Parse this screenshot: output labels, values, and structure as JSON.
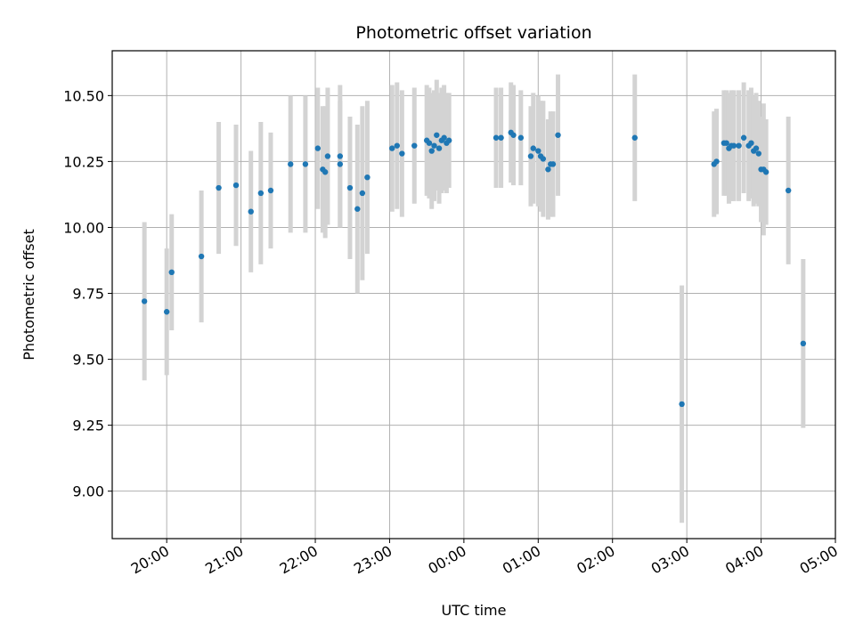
{
  "chart_data": {
    "type": "scatter",
    "title": "Photometric offset variation",
    "xlabel": "UTC time",
    "ylabel": "Photometric offset",
    "grid": true,
    "legend": "none",
    "x_unit": "UTC time (HH:MM)",
    "xlim": [
      "19:16",
      "05:00"
    ],
    "ylim": [
      8.82,
      10.67
    ],
    "x_ticks": [
      "20:00",
      "21:00",
      "22:00",
      "23:00",
      "00:00",
      "01:00",
      "02:00",
      "03:00",
      "04:00",
      "05:00"
    ],
    "y_ticks": [
      "9.00",
      "9.25",
      "9.50",
      "9.75",
      "10.00",
      "10.25",
      "10.50"
    ],
    "colors": {
      "point": "#1f77b4",
      "errorbar": "#d3d3d3",
      "grid": "#b0b0b0"
    },
    "series": [
      {
        "x": [
          "19:42",
          "20:00",
          "20:04",
          "20:28",
          "20:42",
          "20:56",
          "21:08",
          "21:16",
          "21:24",
          "21:40",
          "21:52",
          "22:02",
          "22:06",
          "22:08",
          "22:10",
          "22:20",
          "22:20",
          "22:28",
          "22:34",
          "22:38",
          "22:42",
          "23:02",
          "23:06",
          "23:10",
          "23:20",
          "23:30",
          "23:32",
          "23:34",
          "23:36",
          "23:38",
          "23:40",
          "23:42",
          "23:44",
          "23:46",
          "23:48",
          "00:26",
          "00:30",
          "00:38",
          "00:40",
          "00:46",
          "00:54",
          "00:56",
          "01:00",
          "01:02",
          "01:04",
          "01:08",
          "01:10",
          "01:12",
          "01:16",
          "02:18",
          "02:56",
          "03:22",
          "03:24",
          "03:30",
          "03:32",
          "03:34",
          "03:36",
          "03:38",
          "03:42",
          "03:46",
          "03:50",
          "03:52",
          "03:54",
          "03:56",
          "03:58",
          "04:00",
          "04:02",
          "04:04",
          "04:22",
          "04:34"
        ],
        "y": [
          9.72,
          9.68,
          9.83,
          9.89,
          10.15,
          10.16,
          10.06,
          10.13,
          10.14,
          10.24,
          10.24,
          10.3,
          10.22,
          10.21,
          10.27,
          10.24,
          10.27,
          10.15,
          10.07,
          10.13,
          10.19,
          10.3,
          10.31,
          10.28,
          10.31,
          10.33,
          10.32,
          10.29,
          10.31,
          10.35,
          10.3,
          10.33,
          10.34,
          10.32,
          10.33,
          10.34,
          10.34,
          10.36,
          10.35,
          10.34,
          10.27,
          10.3,
          10.29,
          10.27,
          10.26,
          10.22,
          10.24,
          10.24,
          10.35,
          10.34,
          9.33,
          10.24,
          10.25,
          10.32,
          10.32,
          10.3,
          10.31,
          10.31,
          10.31,
          10.34,
          10.31,
          10.32,
          10.29,
          10.3,
          10.28,
          10.22,
          10.22,
          10.21,
          10.14,
          9.56
        ],
        "err": [
          0.3,
          0.24,
          0.22,
          0.25,
          0.25,
          0.23,
          0.23,
          0.27,
          0.22,
          0.26,
          0.26,
          0.23,
          0.24,
          0.25,
          0.26,
          0.24,
          0.27,
          0.27,
          0.32,
          0.33,
          0.29,
          0.24,
          0.24,
          0.24,
          0.22,
          0.21,
          0.21,
          0.22,
          0.21,
          0.21,
          0.21,
          0.2,
          0.2,
          0.19,
          0.18,
          0.19,
          0.19,
          0.19,
          0.19,
          0.18,
          0.19,
          0.21,
          0.21,
          0.21,
          0.22,
          0.19,
          0.2,
          0.2,
          0.23,
          0.24,
          0.45,
          0.2,
          0.2,
          0.2,
          0.2,
          0.21,
          0.21,
          0.21,
          0.21,
          0.21,
          0.21,
          0.21,
          0.21,
          0.21,
          0.2,
          0.2,
          0.25,
          0.2,
          0.28,
          0.32
        ]
      }
    ]
  }
}
